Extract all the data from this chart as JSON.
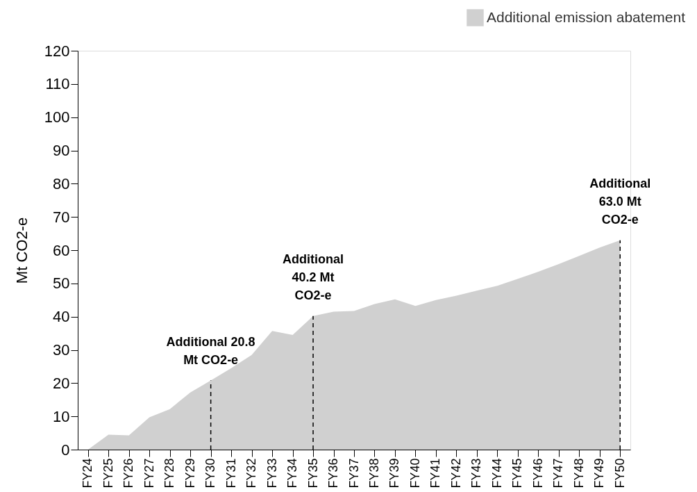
{
  "chart_data": {
    "type": "area",
    "ylabel": "Mt CO2-e",
    "categories": [
      "FY24",
      "FY25",
      "FY26",
      "FY27",
      "FY28",
      "FY29",
      "FY30",
      "FY31",
      "FY32",
      "FY33",
      "FY34",
      "FY35",
      "FY36",
      "FY37",
      "FY38",
      "FY39",
      "FY40",
      "FY41",
      "FY42",
      "FY43",
      "FY44",
      "FY45",
      "FY46",
      "FY47",
      "FY48",
      "FY49",
      "FY50"
    ],
    "series": [
      {
        "name": "Additional emission abatement",
        "color": "#d0d0d0",
        "values": [
          0,
          4.5,
          4.3,
          9.7,
          12.2,
          17.2,
          20.8,
          24.5,
          28.5,
          35.7,
          34.5,
          40.2,
          41.5,
          41.7,
          43.8,
          45.2,
          43.2,
          45,
          46.3,
          47.8,
          49.3,
          51.4,
          53.5,
          55.8,
          58.3,
          60.8,
          63.0
        ]
      }
    ],
    "ylim": [
      0,
      120
    ],
    "yticks": [
      0,
      10,
      20,
      30,
      40,
      50,
      60,
      70,
      80,
      90,
      100,
      110,
      120
    ],
    "annotations": [
      {
        "text": "Additional 20.8\nMt CO2-e",
        "x": "FY30",
        "y": 20.8
      },
      {
        "text": "Additional\n40.2 Mt\nCO2-e",
        "x": "FY35",
        "y": 40.2
      },
      {
        "text": "Additional\n63.0 Mt\nCO2-e",
        "x": "FY50",
        "y": 63.0
      }
    ],
    "grid": false,
    "legend": "top right"
  }
}
